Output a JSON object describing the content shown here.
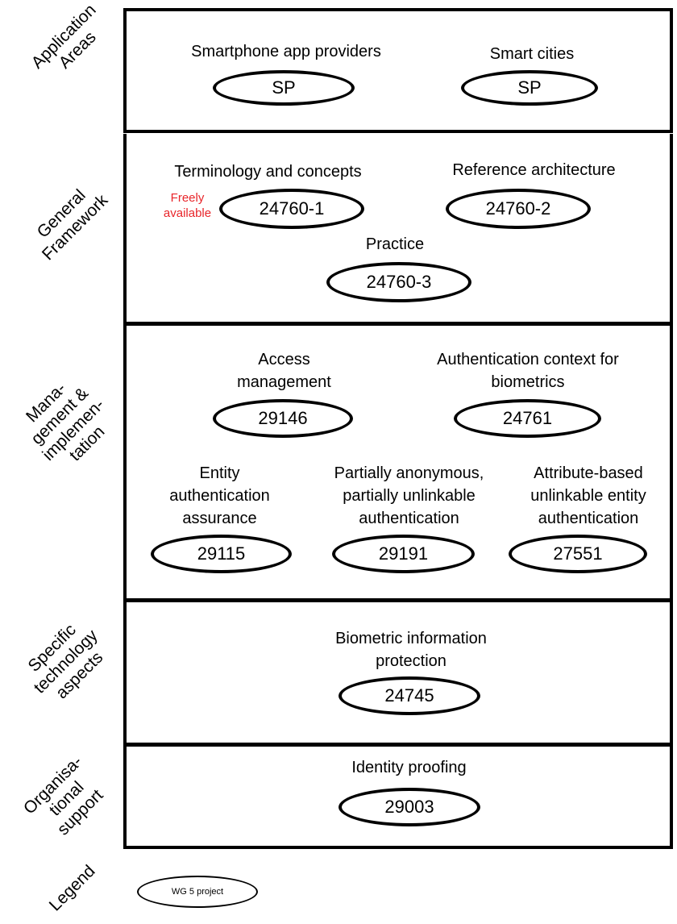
{
  "rows": [
    {
      "label": "Application\nAreas"
    },
    {
      "label": "General\nFramework"
    },
    {
      "label": "Mana-\ngement &\nimplemen-\ntation"
    },
    {
      "label": "Specific\ntechnology\naspects"
    },
    {
      "label": "Organisa-\ntional\nsupport"
    },
    {
      "label": "Legend"
    }
  ],
  "projects": [
    {
      "title": "Smartphone app providers",
      "code": "SP"
    },
    {
      "title": "Smart cities",
      "code": "SP"
    },
    {
      "title": "Terminology and concepts",
      "code": "24760-1"
    },
    {
      "title": "Reference architecture",
      "code": "24760-2"
    },
    {
      "title": "Practice",
      "code": "24760-3"
    },
    {
      "title": "Access\nmanagement",
      "code": "29146"
    },
    {
      "title": "Authentication context for\nbiometrics",
      "code": "24761"
    },
    {
      "title": "Entity\nauthentication\nassurance",
      "code": "29115"
    },
    {
      "title": "Partially anonymous,\npartially unlinkable\nauthentication",
      "code": "29191"
    },
    {
      "title": "Attribute-based\nunlinkable entity\nauthentication",
      "code": "27551"
    },
    {
      "title": "Biometric information\nprotection",
      "code": "24745"
    },
    {
      "title": "Identity proofing",
      "code": "29003"
    }
  ],
  "freely_available_note": "Freely\navailable",
  "legend": {
    "item": "WG 5 project"
  },
  "colors": {
    "note": "#e8252a",
    "line": "#000000"
  }
}
